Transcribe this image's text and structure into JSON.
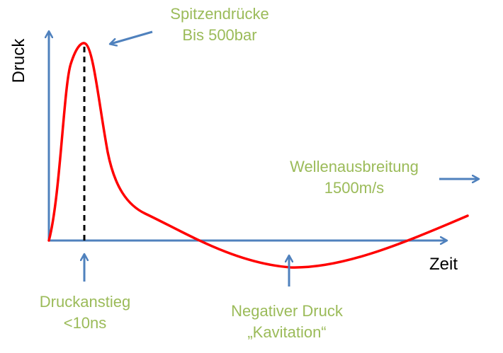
{
  "axes": {
    "y_label": "Druck",
    "x_label": "Zeit"
  },
  "annotations": {
    "peak": {
      "line1": "Spitzendrücke",
      "line2": "Bis 500bar"
    },
    "wave": {
      "line1": "Wellenausbreitung",
      "line2": "1500m/s"
    },
    "rise": {
      "line1": "Druckanstieg",
      "line2": "<10ns"
    },
    "negative": {
      "line1": "Negativer  Druck",
      "line2": "„Kavitation“"
    }
  },
  "colors": {
    "axis": "#4f81bd",
    "curve": "#ff0000",
    "text_accent": "#9bbb59",
    "marker": "#000000"
  }
}
